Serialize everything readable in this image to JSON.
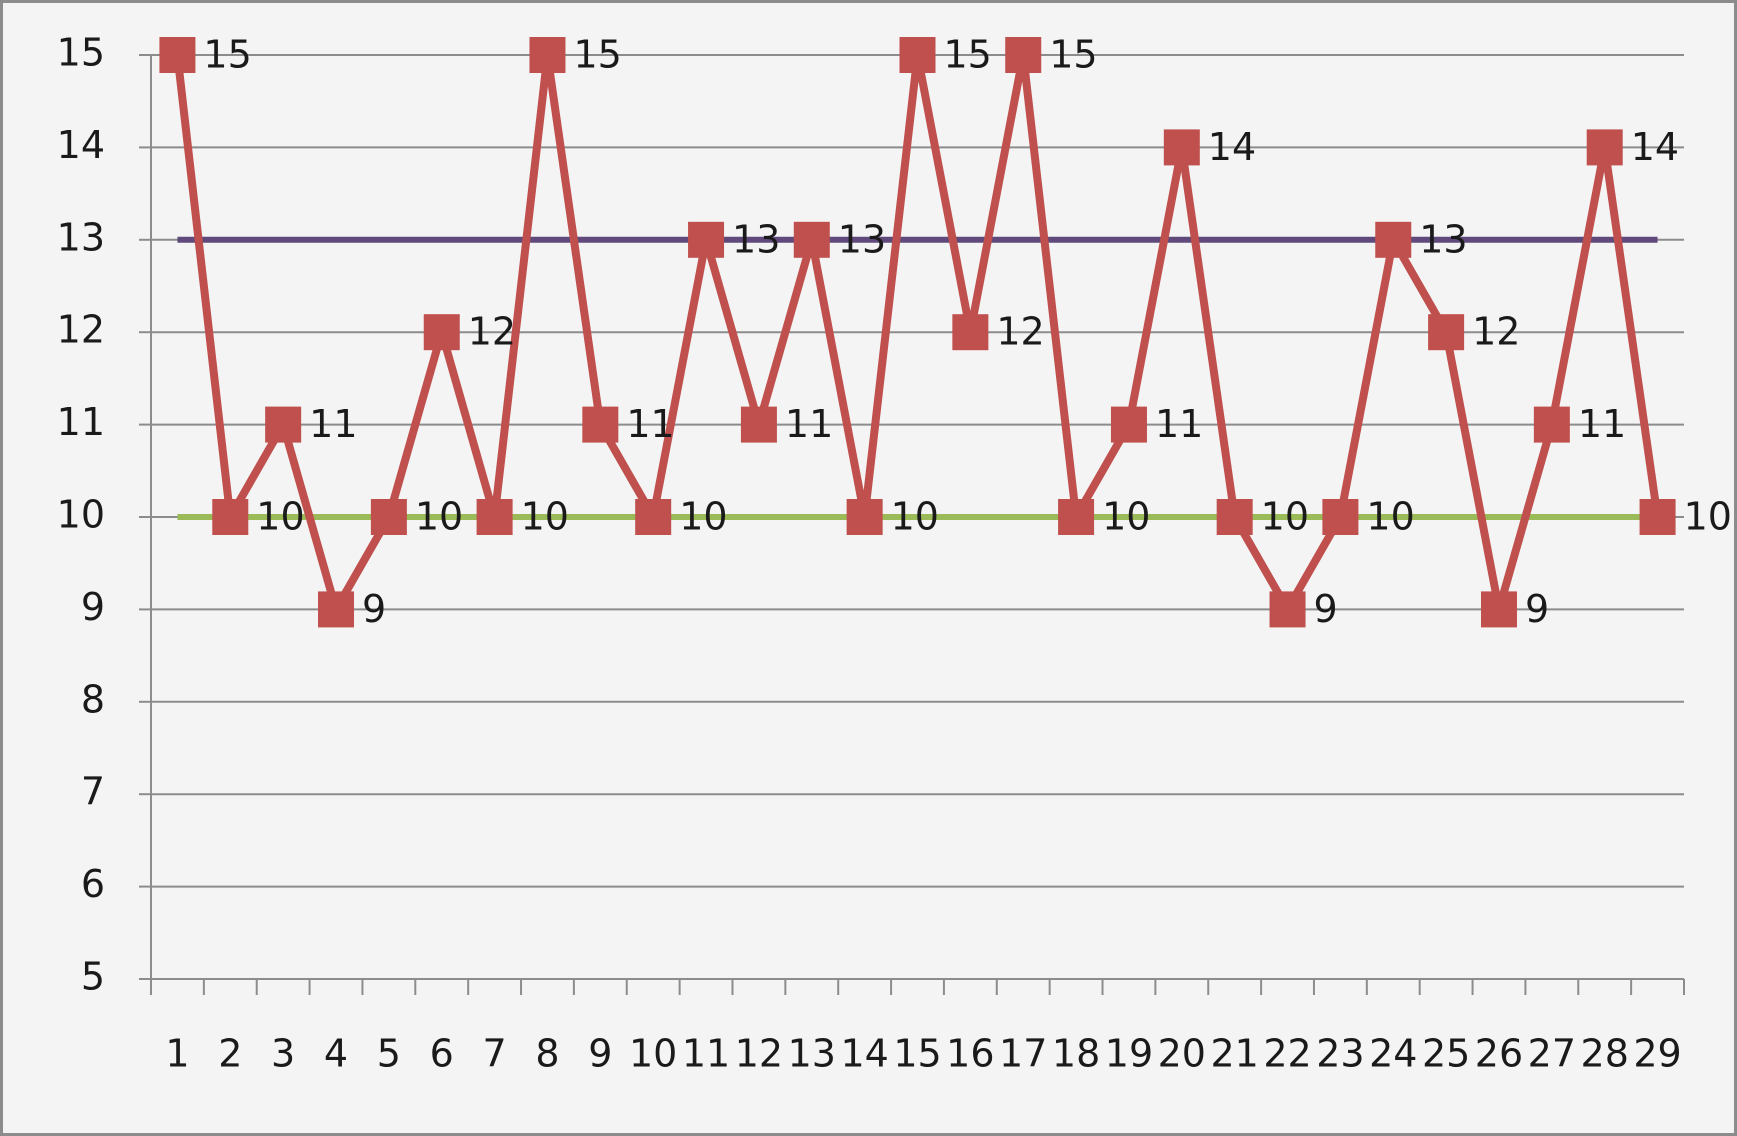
{
  "chart_data": {
    "type": "line",
    "categories": [
      "1",
      "2",
      "3",
      "4",
      "5",
      "6",
      "7",
      "8",
      "9",
      "10",
      "11",
      "12",
      "13",
      "14",
      "15",
      "16",
      "17",
      "18",
      "19",
      "20",
      "21",
      "22",
      "23",
      "24",
      "25",
      "26",
      "27",
      "28",
      "29"
    ],
    "series": [
      {
        "color": "#c0504d",
        "marker": "square",
        "data_labels": true,
        "values": [
          15,
          10,
          11,
          9,
          10,
          12,
          10,
          15,
          11,
          10,
          13,
          11,
          13,
          10,
          15,
          12,
          15,
          10,
          11,
          14,
          10,
          9,
          10,
          13,
          12,
          9,
          11,
          14,
          10
        ]
      },
      {
        "color": "#604a7b",
        "marker": "none",
        "data_labels": false,
        "values": [
          13,
          13,
          13,
          13,
          13,
          13,
          13,
          13,
          13,
          13,
          13,
          13,
          13,
          13,
          13,
          13,
          13,
          13,
          13,
          13,
          13,
          13,
          13,
          13,
          13,
          13,
          13,
          13,
          13
        ]
      },
      {
        "color": "#9bbb59",
        "marker": "none",
        "data_labels": false,
        "values": [
          10,
          10,
          10,
          10,
          10,
          10,
          10,
          10,
          10,
          10,
          10,
          10,
          10,
          10,
          10,
          10,
          10,
          10,
          10,
          10,
          10,
          10,
          10,
          10,
          10,
          10,
          10,
          10,
          10
        ]
      }
    ],
    "ylim": [
      5,
      15
    ],
    "yticks": [
      5,
      6,
      7,
      8,
      9,
      10,
      11,
      12,
      13,
      14,
      15
    ],
    "grid": true
  }
}
